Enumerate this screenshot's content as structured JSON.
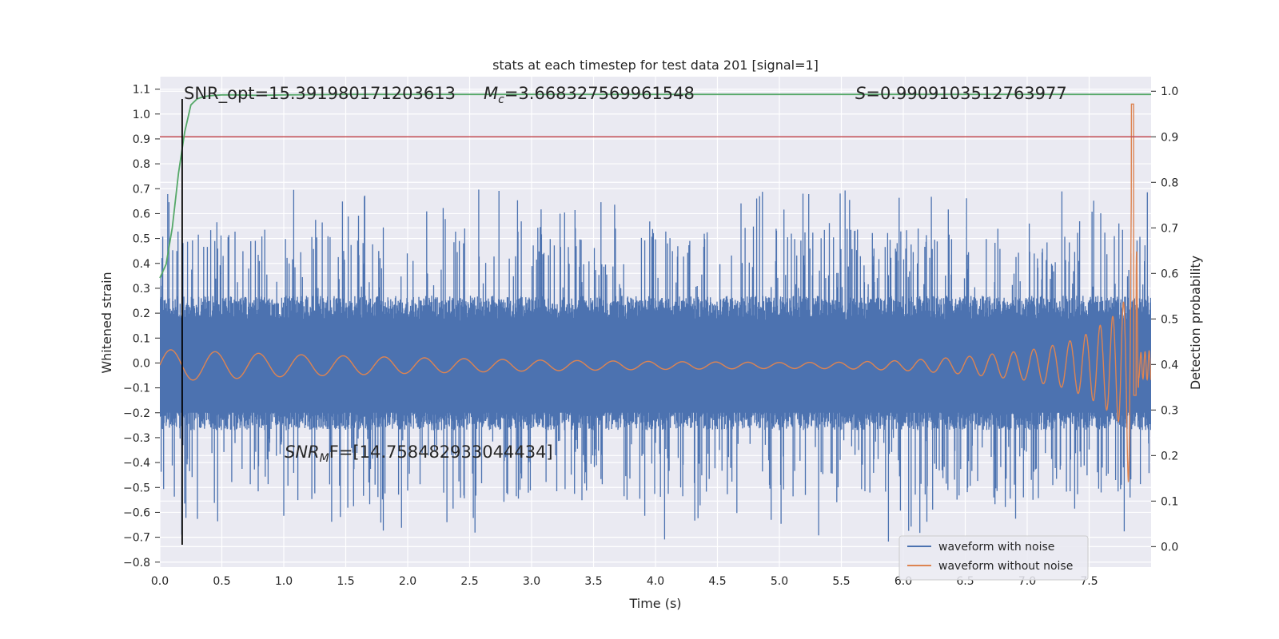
{
  "chart_data": {
    "type": "line",
    "title": "stats at each timestep for test data 201 [signal=1]",
    "xlabel": "Time (s)",
    "ylabel": "Whitened strain",
    "y2label": "Detection probability",
    "xlim": [
      0.0,
      8.0
    ],
    "ylim": [
      -0.82,
      1.15
    ],
    "y2lim": [
      -0.045,
      1.032
    ],
    "xticks": [
      0.0,
      0.5,
      1.0,
      1.5,
      2.0,
      2.5,
      3.0,
      3.5,
      4.0,
      4.5,
      5.0,
      5.5,
      6.0,
      6.5,
      7.0,
      7.5
    ],
    "xtick_labels": [
      "0.0",
      "0.5",
      "1.0",
      "1.5",
      "2.0",
      "2.5",
      "3.0",
      "3.5",
      "4.0",
      "4.5",
      "5.0",
      "5.5",
      "6.0",
      "6.5",
      "7.0",
      "7.5"
    ],
    "yticks": [
      -0.8,
      -0.7,
      -0.6,
      -0.5,
      -0.4,
      -0.3,
      -0.2,
      -0.1,
      0.0,
      0.1,
      0.2,
      0.3,
      0.4,
      0.5,
      0.6,
      0.7,
      0.8,
      0.9,
      1.0,
      1.1
    ],
    "ytick_labels": [
      "−0.8",
      "−0.7",
      "−0.6",
      "−0.5",
      "−0.4",
      "−0.3",
      "−0.2",
      "−0.1",
      "0.0",
      "0.1",
      "0.2",
      "0.3",
      "0.4",
      "0.5",
      "0.6",
      "0.7",
      "0.8",
      "0.9",
      "1.0",
      "1.1"
    ],
    "y2ticks": [
      0.0,
      0.1,
      0.2,
      0.3,
      0.4,
      0.5,
      0.6,
      0.7,
      0.8,
      0.9,
      1.0
    ],
    "y2tick_labels": [
      "0.0",
      "0.1",
      "0.2",
      "0.3",
      "0.4",
      "0.5",
      "0.6",
      "0.7",
      "0.8",
      "0.9",
      "1.0"
    ],
    "grid": true,
    "legend_position": "bottom-right",
    "colors": {
      "axes_bg": "#eaeaf2",
      "grid": "#ffffff",
      "noise": "#4c72b0",
      "clean": "#dd8452",
      "probability": "#55a868",
      "threshold": "#c44e52",
      "marker": "#000000",
      "text": "#262626"
    },
    "series": [
      {
        "name": "waveform with noise",
        "axis": "left",
        "note_values": "envelope of noisy whitened strain (approx. random, amplitude ~0.2 core with spikes up to ~0.7)"
      },
      {
        "name": "waveform without noise",
        "axis": "left",
        "envelope": {
          "x": [
            0.0,
            0.2,
            1.0,
            2.0,
            3.0,
            4.0,
            5.0,
            5.5,
            6.0,
            6.5,
            7.0,
            7.3,
            7.5,
            7.7,
            7.8,
            7.86,
            7.9,
            8.0
          ],
          "amp": [
            0.065,
            0.06,
            0.045,
            0.032,
            0.022,
            0.016,
            0.012,
            0.013,
            0.02,
            0.035,
            0.06,
            0.09,
            0.13,
            0.2,
            0.27,
            1.05,
            0.05,
            0.06
          ]
        }
      },
      {
        "axis": "right",
        "x": [
          0.0,
          0.05,
          0.1,
          0.15,
          0.2,
          0.25,
          0.3,
          0.35,
          0.4,
          0.5,
          0.6,
          0.8,
          1.0,
          1.5,
          2.0,
          3.0,
          4.0,
          5.0,
          6.0,
          7.0,
          7.5,
          7.8,
          8.0
        ],
        "values": [
          0.59,
          0.62,
          0.7,
          0.82,
          0.91,
          0.97,
          0.983,
          0.988,
          0.99,
          0.992,
          0.992,
          0.991,
          0.992,
          0.993,
          0.993,
          0.993,
          0.993,
          0.993,
          0.993,
          0.993,
          0.993,
          0.993,
          0.993
        ]
      }
    ],
    "threshold": {
      "axis": "right",
      "value": 0.9
    },
    "marker_line": {
      "x": 0.18,
      "y_from": -0.73,
      "y_to": 1.06
    },
    "annotations": {
      "snr_opt": "SNR_opt=15.391980171203613",
      "mc": "=3.668327569961548",
      "mc_symbol": "M",
      "mc_sub": "c",
      "s_val": "=0.9909103512763977",
      "s_symbol": "S",
      "snr_mf_symbol": "SNR",
      "snr_mf_sub": "M",
      "snr_mf_rest": "F=[14.758482933044434]"
    }
  }
}
